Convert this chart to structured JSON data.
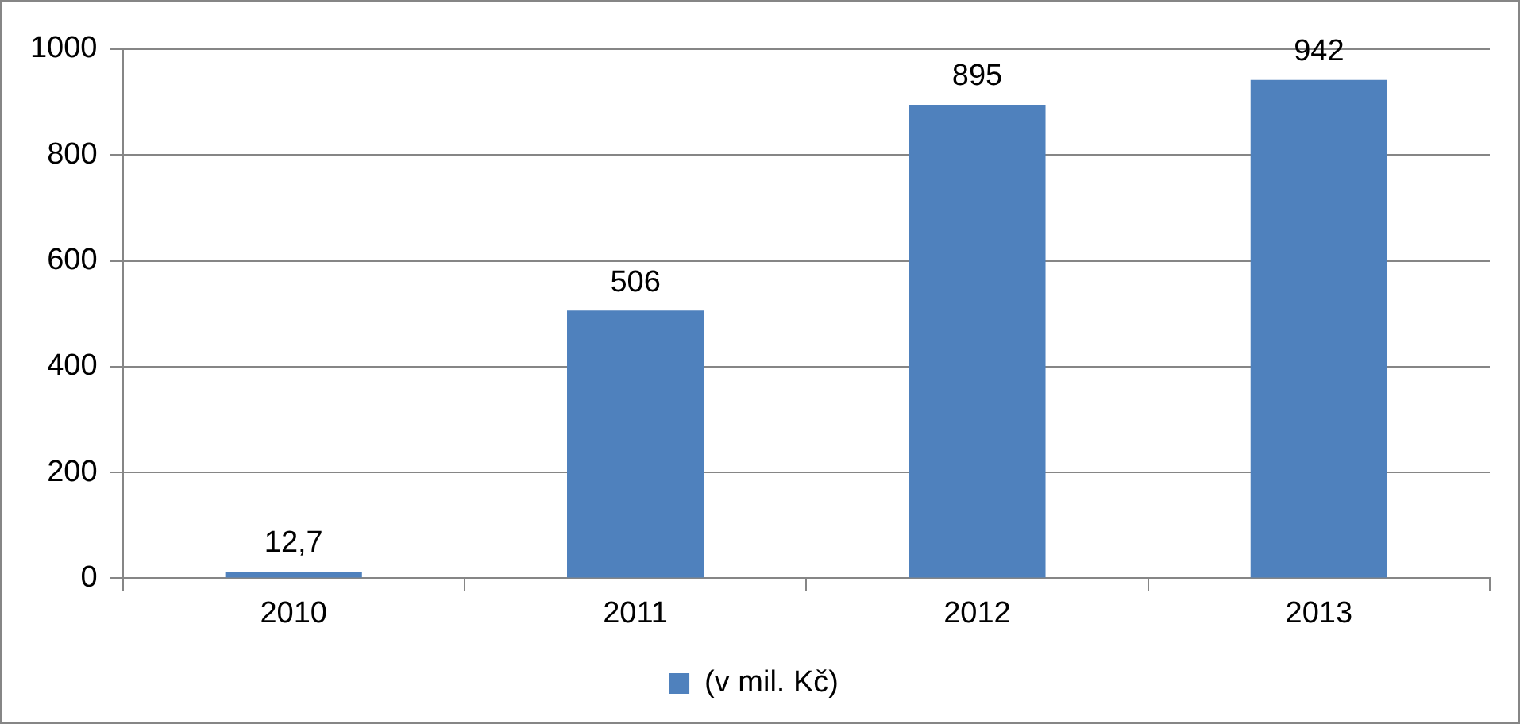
{
  "chart_data": {
    "type": "bar",
    "categories": [
      "2010",
      "2011",
      "2012",
      "2013"
    ],
    "series": [
      {
        "name": "(v mil. Kč)",
        "color": "#4f81bd",
        "values": [
          12.7,
          506,
          895,
          942
        ],
        "value_labels": [
          "12,7",
          "506",
          "895",
          "942"
        ]
      }
    ],
    "ylim": [
      0,
      1000
    ],
    "yticks": [
      0,
      200,
      400,
      600,
      800,
      1000
    ],
    "grid": "y",
    "legend": "bottom"
  }
}
